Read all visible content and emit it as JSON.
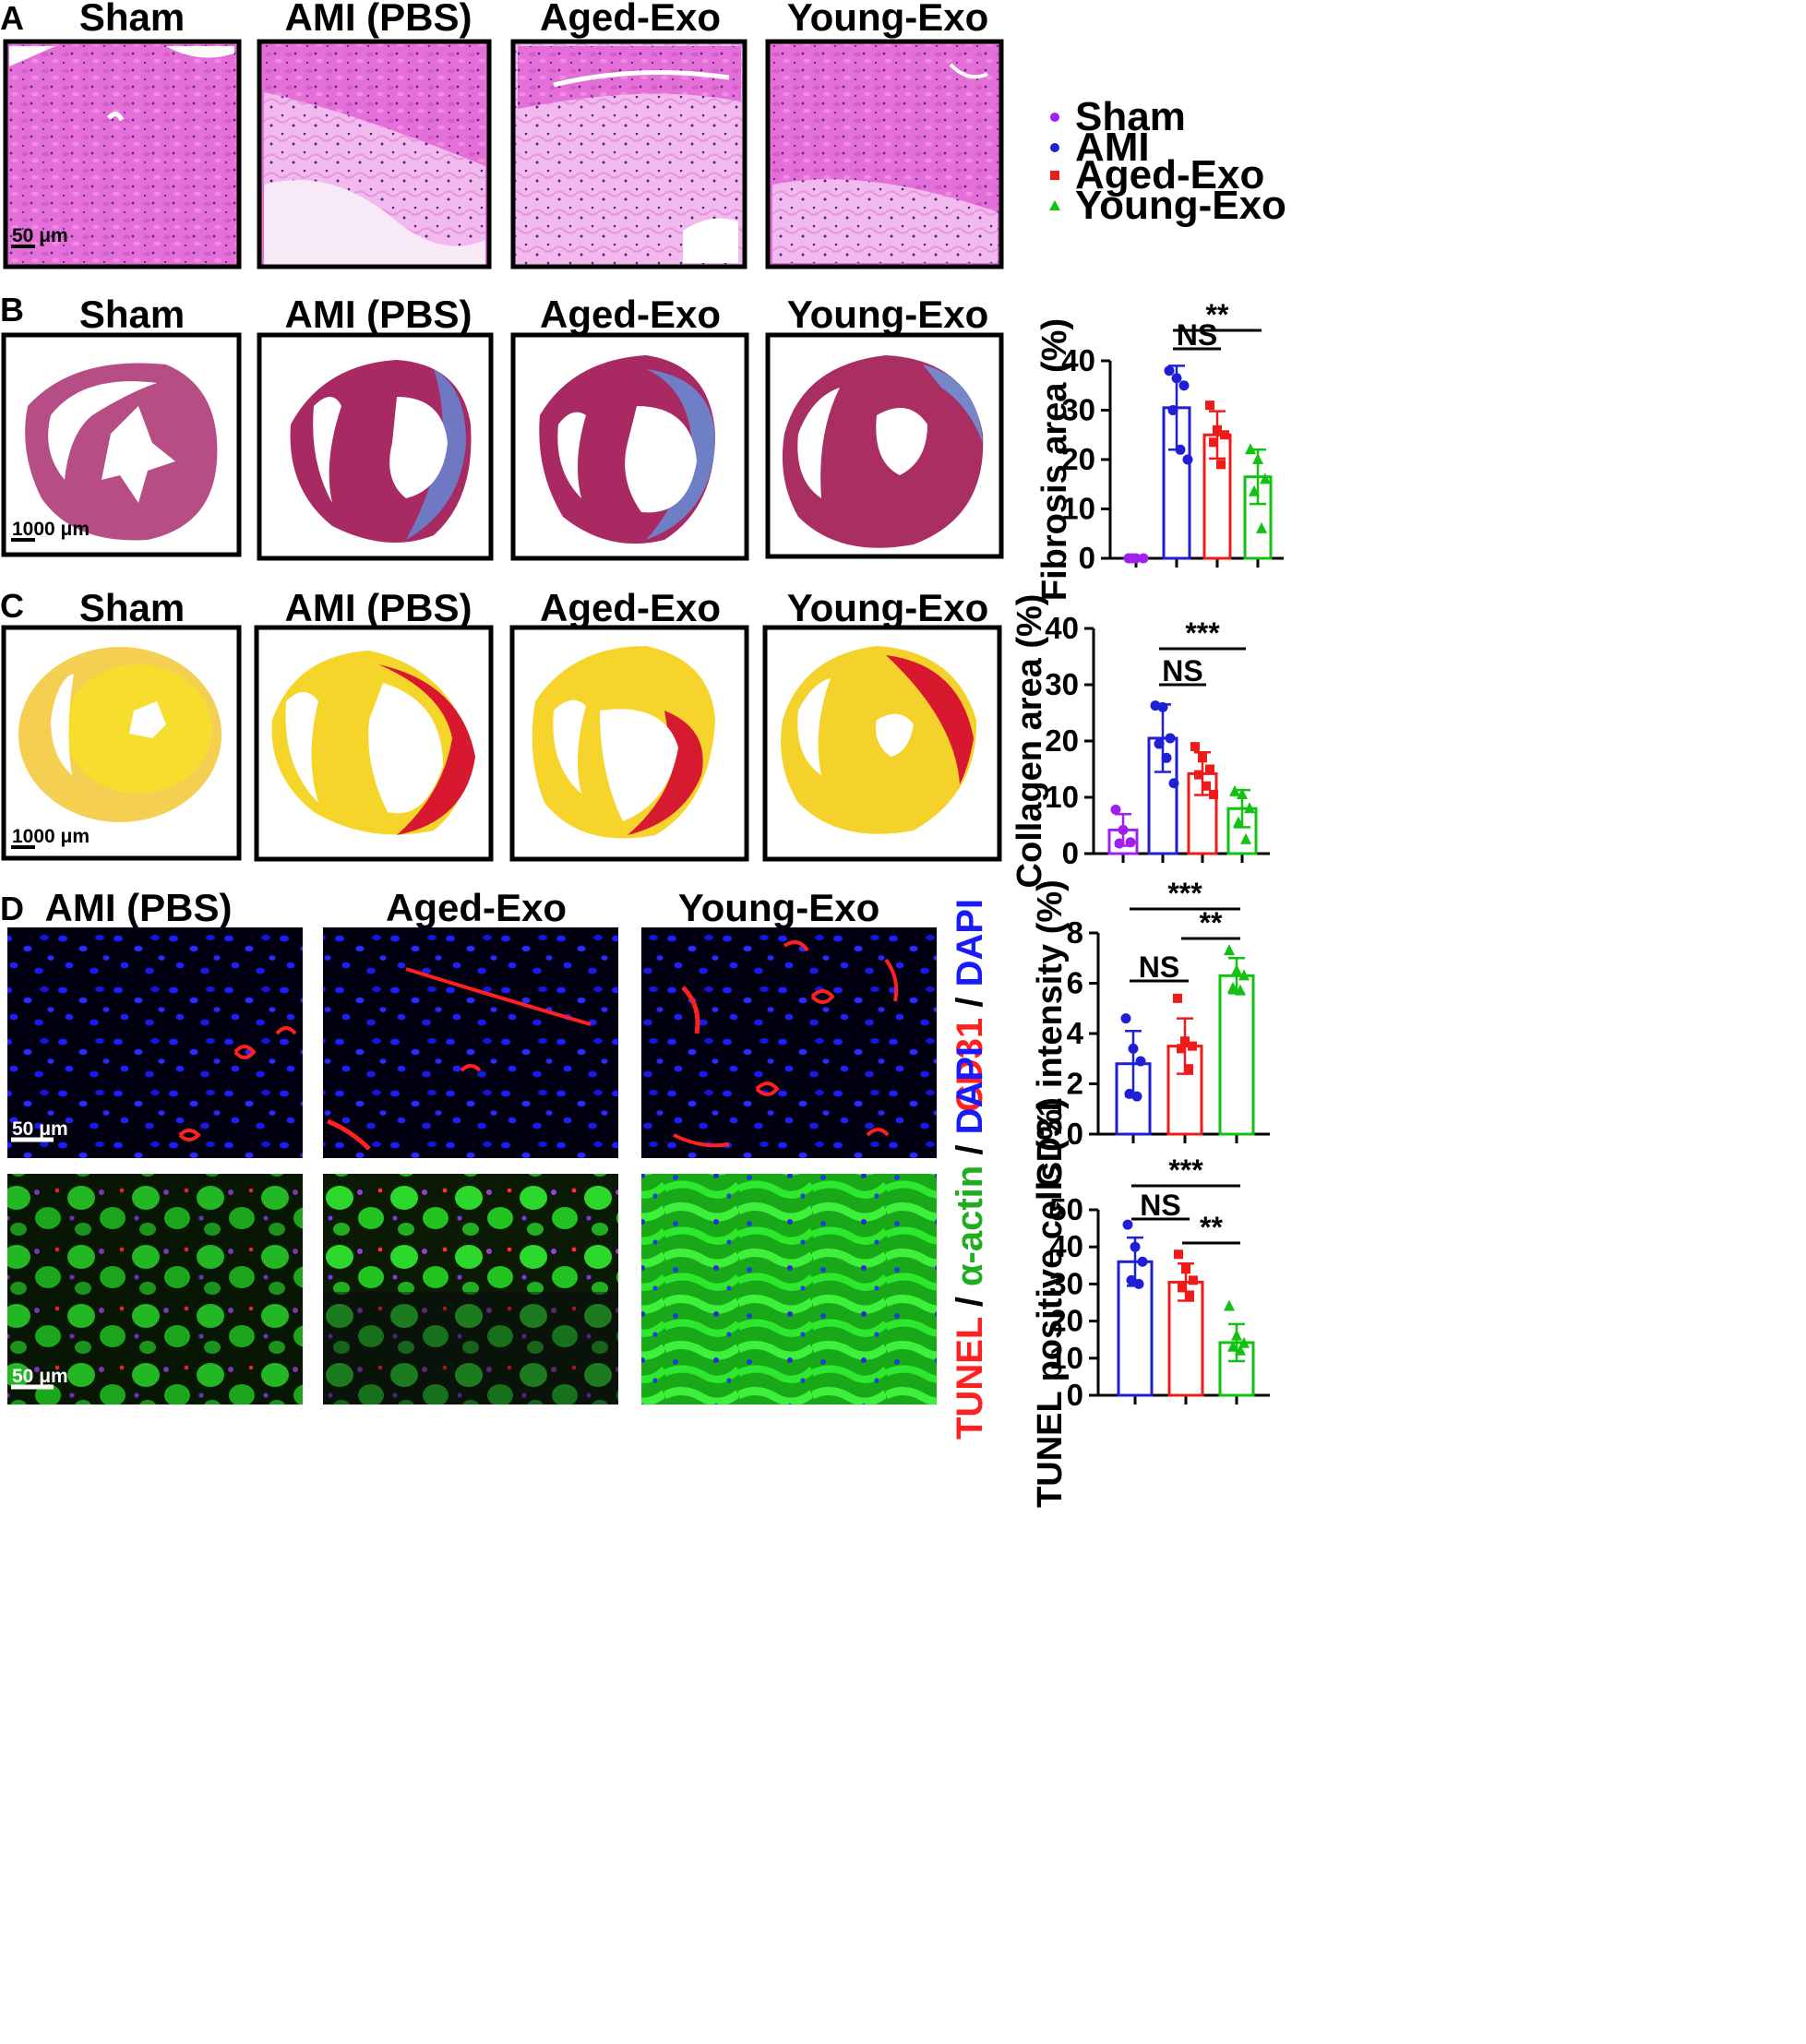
{
  "panels": {
    "A": {
      "letter": "A",
      "columns": [
        "Sham",
        "AMI (PBS)",
        "Aged-Exo",
        "Young-Exo"
      ],
      "scale_bar": "50 μm"
    },
    "B": {
      "letter": "B",
      "columns": [
        "Sham",
        "AMI (PBS)",
        "Aged-Exo",
        "Young-Exo"
      ],
      "scale_bar": "1000 μm"
    },
    "C": {
      "letter": "C",
      "columns": [
        "Sham",
        "AMI (PBS)",
        "Aged-Exo",
        "Young-Exo"
      ],
      "scale_bar": "1000 μm"
    },
    "D": {
      "letter": "D",
      "columns": [
        "AMI (PBS)",
        "Aged-Exo",
        "Young-Exo"
      ],
      "scale_bar_top": "50 μm",
      "scale_bar_bottom": "50 μm",
      "stain_top": {
        "cd31": "CD31",
        "sep": " / ",
        "dapi": "DAPI"
      },
      "stain_bottom": {
        "tunel": "TUNEL",
        "sep1": " / ",
        "actin": "α-actin",
        "sep2": " / ",
        "dapi": "DAPI"
      }
    }
  },
  "legend": {
    "items": [
      {
        "label": "Sham",
        "color": "#a020f0",
        "marker": "circle"
      },
      {
        "label": "AMI",
        "color": "#1f1fd6",
        "marker": "circle"
      },
      {
        "label": "Aged-Exo",
        "color": "#ef1b1b",
        "marker": "square"
      },
      {
        "label": "Young-Exo",
        "color": "#12c212",
        "marker": "triangle"
      }
    ]
  },
  "colors": {
    "sham": "#a020f0",
    "ami": "#1f1fd6",
    "aged": "#ef1b1b",
    "young": "#12c212",
    "he_stain": "#e26fd6",
    "masson_muscle": "#b0336b",
    "masson_collagen": "#6b78c8",
    "sirius_yellow": "#f6d52a",
    "sirius_red": "#d8182e",
    "dapi": "#1a1aff",
    "cd31": "#ff2020",
    "actin": "#22e022"
  },
  "chart_data": [
    {
      "id": "fibrosis",
      "type": "bar",
      "categories": [
        "Sham",
        "AMI",
        "Aged-Exo",
        "Young-Exo"
      ],
      "ylabel": "Fibrosis area (%)",
      "ylim": [
        0,
        40
      ],
      "yticks": [
        0,
        10,
        20,
        30,
        40
      ],
      "values": [
        0,
        30.5,
        25,
        16.5
      ],
      "errors": [
        0,
        8.5,
        4.8,
        5.5
      ],
      "points": [
        [
          0,
          0,
          0,
          0
        ],
        [
          38,
          36.5,
          35,
          30,
          22,
          20
        ],
        [
          31,
          26,
          25,
          23.5,
          19
        ],
        [
          22,
          20,
          16,
          13.5,
          6
        ]
      ],
      "significance": [
        {
          "from": 1,
          "to": 2,
          "label": "NS"
        },
        {
          "from": 1,
          "to": 3,
          "label": "**"
        }
      ]
    },
    {
      "id": "collagen",
      "type": "bar",
      "categories": [
        "Sham",
        "AMI",
        "Aged-Exo",
        "Young-Exo"
      ],
      "ylabel": "Collagen area (%)",
      "ylim": [
        0,
        40
      ],
      "yticks": [
        0,
        10,
        20,
        30,
        40
      ],
      "values": [
        4.2,
        20.5,
        14.2,
        8
      ],
      "errors": [
        2.8,
        6,
        3.8,
        3.3
      ],
      "points": [
        [
          7.8,
          4.2,
          2,
          1.8
        ],
        [
          26.3,
          26,
          20.5,
          19.5,
          17,
          12.5
        ],
        [
          19,
          17,
          15,
          14,
          12,
          10.5
        ],
        [
          11,
          10.5,
          8,
          5.5,
          2.5
        ]
      ],
      "significance": [
        {
          "from": 1,
          "to": 2,
          "label": "NS"
        },
        {
          "from": 1,
          "to": 3,
          "label": "***"
        }
      ]
    },
    {
      "id": "cd31",
      "type": "bar",
      "categories": [
        "AMI",
        "Aged-Exo",
        "Young-Exo"
      ],
      "ylabel": "CD31 intensity (%)",
      "ylim": [
        0,
        8
      ],
      "yticks": [
        0,
        2,
        4,
        6,
        8
      ],
      "values": [
        2.8,
        3.5,
        6.3
      ],
      "errors": [
        1.3,
        1.1,
        0.7
      ],
      "points": [
        [
          4.6,
          3.4,
          2.9,
          1.6,
          1.5
        ],
        [
          5.4,
          3.7,
          3.5,
          3.4,
          2.6
        ],
        [
          7.3,
          6.5,
          6.3,
          5.8,
          5.7
        ]
      ],
      "significance": [
        {
          "from": 0,
          "to": 1,
          "label": "NS"
        },
        {
          "from": 1,
          "to": 2,
          "label": "**"
        },
        {
          "from": 0,
          "to": 2,
          "label": "***"
        }
      ]
    },
    {
      "id": "tunel",
      "type": "bar",
      "categories": [
        "AMI",
        "Aged-Exo",
        "Young-Exo"
      ],
      "ylabel": "TUNEL positive cells (%)",
      "ylim": [
        0,
        50
      ],
      "yticks": [
        0,
        10,
        20,
        30,
        40,
        50
      ],
      "values": [
        36,
        30.5,
        14.2
      ],
      "errors": [
        6.5,
        5,
        5
      ],
      "points": [
        [
          46,
          40,
          36,
          31,
          30
        ],
        [
          38,
          34,
          31,
          29,
          27
        ],
        [
          24,
          16,
          14,
          13,
          12
        ]
      ],
      "significance": [
        {
          "from": 0,
          "to": 1,
          "label": "NS"
        },
        {
          "from": 1,
          "to": 2,
          "label": "**"
        },
        {
          "from": 0,
          "to": 2,
          "label": "***"
        }
      ]
    }
  ]
}
